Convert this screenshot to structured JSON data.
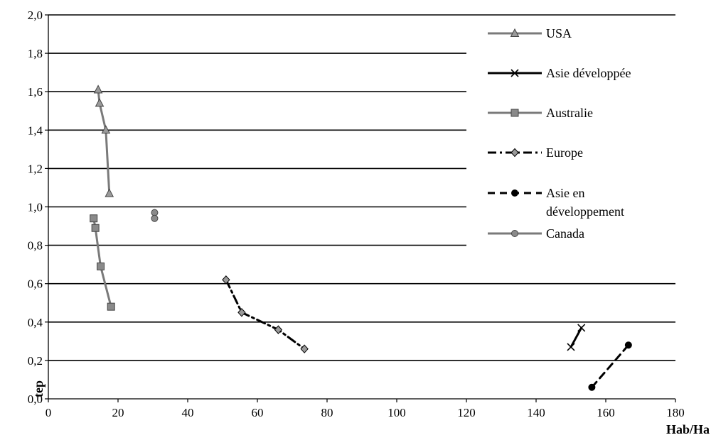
{
  "chart_data": {
    "type": "scatter",
    "title": "",
    "xlabel": "Hab/Ha",
    "ylabel": "tep",
    "xlim": [
      0,
      180
    ],
    "ylim": [
      0.0,
      2.0
    ],
    "x_tick_labels": [
      "0",
      "20",
      "40",
      "60",
      "80",
      "100",
      "120",
      "140",
      "160",
      "180"
    ],
    "y_tick_labels": [
      "0,0",
      "0,2",
      "0,4",
      "0,6",
      "0,8",
      "1,0",
      "1,2",
      "1,4",
      "1,6",
      "1,8",
      "2,0"
    ],
    "grid": "horizontal",
    "legend_position": "top-right",
    "series": [
      {
        "name": "USA",
        "color": "#7a7a7a",
        "marker": "triangle",
        "line": "solid",
        "x": [
          14.3,
          14.7,
          16.5,
          17.5
        ],
        "y": [
          1.61,
          1.54,
          1.4,
          1.07
        ]
      },
      {
        "name": "Asie développée",
        "color": "#000000",
        "marker": "x",
        "line": "solid",
        "x": [
          150.0,
          153.0
        ],
        "y": [
          0.27,
          0.37
        ]
      },
      {
        "name": "Australie",
        "color": "#7a7a7a",
        "marker": "square",
        "line": "solid",
        "x": [
          13.0,
          13.5,
          15.0,
          18.0
        ],
        "y": [
          0.94,
          0.89,
          0.69,
          0.48
        ]
      },
      {
        "name": "Europe",
        "color": "#000000",
        "marker": "diamond",
        "line": "dashdot",
        "x": [
          51.0,
          55.5,
          66.0,
          73.5
        ],
        "y": [
          0.62,
          0.45,
          0.36,
          0.26
        ]
      },
      {
        "name": "Asie en développement",
        "legend_lines": [
          "Asie en",
          "développement"
        ],
        "color": "#000000",
        "marker": "circle",
        "line": "dashed",
        "x": [
          156.0,
          166.5
        ],
        "y": [
          0.06,
          0.28
        ]
      },
      {
        "name": "Canada",
        "color": "#7a7a7a",
        "marker": "circle",
        "line": "solid",
        "x": [
          30.5,
          30.5
        ],
        "y": [
          0.97,
          0.94
        ]
      }
    ]
  }
}
